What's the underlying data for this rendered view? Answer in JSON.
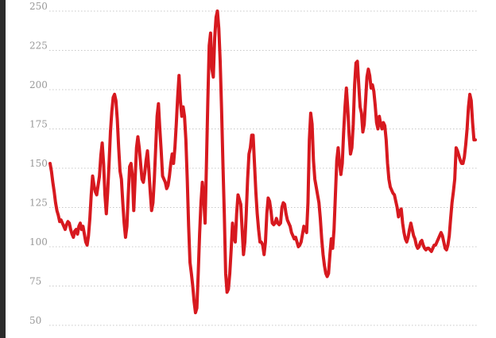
{
  "chart_data": {
    "type": "line",
    "title": "",
    "xlabel": "",
    "ylabel": "",
    "ylim": [
      50,
      250
    ],
    "y_ticks": [
      250,
      225,
      200,
      175,
      150,
      125,
      100,
      75,
      50
    ],
    "grid": "horizontal dotted",
    "legend": "none",
    "series": [
      {
        "color": "#d7191f",
        "values": [
          150,
          145,
          138,
          132,
          125,
          120,
          117,
          113,
          114,
          112,
          110,
          108,
          111,
          113,
          112,
          108,
          105,
          103,
          107,
          108,
          105,
          110,
          112,
          108,
          110,
          105,
          100,
          98,
          104,
          115,
          130,
          142,
          136,
          132,
          130,
          136,
          142,
          155,
          163,
          150,
          130,
          118,
          132,
          150,
          170,
          183,
          192,
          194,
          190,
          178,
          160,
          145,
          140,
          125,
          112,
          103,
          110,
          130,
          148,
          150,
          142,
          120,
          140,
          160,
          167,
          160,
          150,
          140,
          138,
          144,
          152,
          158,
          146,
          132,
          120,
          125,
          140,
          160,
          180,
          188,
          172,
          158,
          142,
          140,
          138,
          134,
          136,
          142,
          150,
          156,
          150,
          160,
          175,
          192,
          206,
          190,
          180,
          186,
          180,
          165,
          140,
          110,
          87,
          80,
          72,
          62,
          55,
          58,
          80,
          105,
          125,
          138,
          128,
          112,
          150,
          190,
          225,
          233,
          210,
          205,
          230,
          243,
          247,
          236,
          215,
          185,
          150,
          118,
          80,
          68,
          70,
          80,
          95,
          112,
          103,
          100,
          118,
          130,
          127,
          124,
          108,
          92,
          100,
          118,
          140,
          156,
          160,
          168,
          168,
          150,
          132,
          118,
          108,
          100,
          100,
          98,
          92,
          100,
          118,
          128,
          126,
          120,
          112,
          111,
          112,
          115,
          112,
          111,
          112,
          122,
          125,
          124,
          118,
          114,
          112,
          110,
          106,
          104,
          102,
          103,
          100,
          97,
          98,
          100,
          105,
          110,
          108,
          106,
          125,
          165,
          182,
          175,
          152,
          140,
          135,
          130,
          125,
          115,
          102,
          92,
          85,
          80,
          78,
          80,
          92,
          102,
          96,
          108,
          130,
          152,
          160,
          150,
          143,
          150,
          170,
          186,
          198,
          185,
          168,
          156,
          160,
          175,
          200,
          214,
          215,
          200,
          186,
          182,
          170,
          175,
          190,
          205,
          210,
          206,
          198,
          200,
          196,
          187,
          176,
          172,
          180,
          175,
          172,
          176,
          174,
          165,
          150,
          140,
          135,
          133,
          131,
          130,
          126,
          122,
          116,
          120,
          121,
          112,
          106,
          102,
          100,
          103,
          108,
          112,
          108,
          104,
          102,
          98,
          96,
          97,
          100,
          101,
          98,
          96,
          95,
          96,
          96,
          95,
          94,
          96,
          98,
          98,
          100,
          102,
          104,
          106,
          104,
          100,
          96,
          95,
          98,
          104,
          115,
          125,
          132,
          140,
          160,
          158,
          155,
          152,
          150,
          150,
          154,
          162,
          172,
          186,
          194,
          190,
          176,
          165,
          165
        ]
      }
    ]
  }
}
